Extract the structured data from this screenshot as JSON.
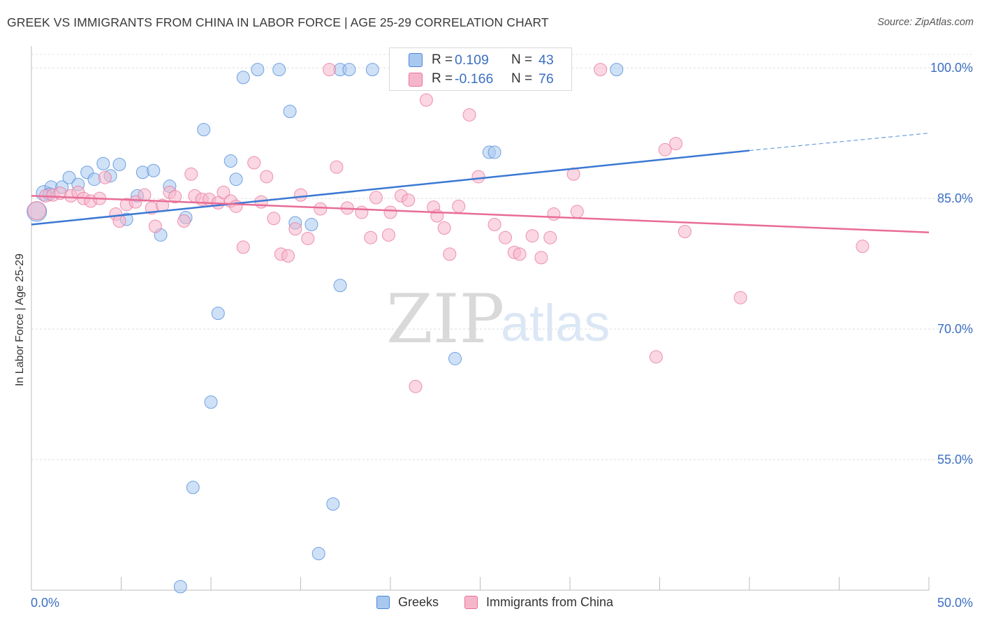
{
  "header": {
    "title": "GREEK VS IMMIGRANTS FROM CHINA IN LABOR FORCE | AGE 25-29 CORRELATION CHART",
    "source": "Source: ZipAtlas.com"
  },
  "stats_legend": {
    "rows": [
      {
        "r_label": "R =",
        "r_value": "0.109",
        "n_label": "N =",
        "n_value": "43",
        "color": "#a8c8f0"
      },
      {
        "r_label": "R =",
        "r_value": "-0.166",
        "n_label": "N =",
        "n_value": "76",
        "color": "#f6b6ca"
      }
    ]
  },
  "watermark": {
    "zip": "ZIP",
    "atlas": "atlas"
  },
  "bottom_legend": {
    "items": [
      {
        "label": "Greeks",
        "color": "#a8c8f0"
      },
      {
        "label": "Immigrants from China",
        "color": "#f6b6ca"
      }
    ]
  },
  "chart_data": {
    "type": "scatter",
    "title": "GREEK VS IMMIGRANTS FROM CHINA IN LABOR FORCE | AGE 25-29 CORRELATION CHART",
    "xlabel": "",
    "ylabel": "In Labor Force | Age 25-29",
    "xlim": [
      0,
      50
    ],
    "ylim": [
      40,
      102.5
    ],
    "x_tick_labels": [
      {
        "value": 0,
        "label": "0.0%"
      },
      {
        "value": 50,
        "label": "50.0%"
      }
    ],
    "y_tick_labels": [
      {
        "value": 100,
        "label": "100.0%"
      },
      {
        "value": 85,
        "label": "85.0%"
      },
      {
        "value": 70,
        "label": "70.0%"
      },
      {
        "value": 55,
        "label": "55.0%"
      }
    ],
    "grid": "horizontal dashed",
    "legend_position": "bottom-center",
    "series": [
      {
        "name": "Greeks",
        "color": "#4a86d8",
        "fill": "#a8c8f0",
        "R": 0.109,
        "N": 43,
        "trend": {
          "x0": 0,
          "y0": 82.0,
          "x1": 40,
          "y1": 90.5,
          "x_dash_end": 50,
          "y_dash_end": 92.5
        },
        "points": [
          [
            0.3,
            83.5,
            14
          ],
          [
            0.7,
            85.6,
            11
          ],
          [
            1.1,
            86.3,
            9
          ],
          [
            1.7,
            86.3,
            9
          ],
          [
            2.1,
            87.4,
            9
          ],
          [
            2.6,
            86.6,
            9
          ],
          [
            3.1,
            88.0,
            9
          ],
          [
            3.5,
            87.2,
            9
          ],
          [
            4.0,
            89.0,
            9
          ],
          [
            4.4,
            87.6,
            9
          ],
          [
            4.9,
            88.9,
            9
          ],
          [
            5.3,
            82.6,
            9
          ],
          [
            5.9,
            85.3,
            9
          ],
          [
            6.2,
            88.0,
            9
          ],
          [
            6.8,
            88.2,
            9
          ],
          [
            7.2,
            80.8,
            9
          ],
          [
            7.7,
            86.4,
            9
          ],
          [
            8.3,
            40.4,
            9
          ],
          [
            8.6,
            82.8,
            9
          ],
          [
            9.0,
            51.8,
            9
          ],
          [
            9.6,
            92.9,
            9
          ],
          [
            10.0,
            61.6,
            9
          ],
          [
            10.4,
            71.8,
            9
          ],
          [
            11.1,
            89.3,
            9
          ],
          [
            11.4,
            87.2,
            9
          ],
          [
            11.8,
            98.9,
            9
          ],
          [
            12.6,
            99.8,
            9
          ],
          [
            13.8,
            99.8,
            9
          ],
          [
            14.4,
            95.0,
            9
          ],
          [
            14.7,
            82.2,
            9
          ],
          [
            15.6,
            82.0,
            9
          ],
          [
            16.0,
            44.2,
            9
          ],
          [
            16.8,
            49.9,
            9
          ],
          [
            17.2,
            75.0,
            9
          ],
          [
            17.2,
            99.8,
            9
          ],
          [
            17.7,
            99.8,
            9
          ],
          [
            19.0,
            99.8,
            9
          ],
          [
            20.3,
            99.8,
            9
          ],
          [
            23.6,
            66.6,
            9
          ],
          [
            25.5,
            90.3,
            9
          ],
          [
            25.8,
            90.3,
            9
          ],
          [
            32.6,
            99.8,
            9
          ],
          [
            1.0,
            85.5,
            9
          ]
        ]
      },
      {
        "name": "Immigrants from China",
        "color": "#e8709a",
        "fill": "#f6b6ca",
        "R": -0.166,
        "N": 76,
        "trend": {
          "x0": 0,
          "y0": 85.3,
          "x1": 50,
          "y1": 81.1
        },
        "points": [
          [
            0.3,
            83.6,
            13
          ],
          [
            0.8,
            85.3,
            9
          ],
          [
            1.2,
            85.4,
            9
          ],
          [
            1.6,
            85.6,
            9
          ],
          [
            2.2,
            85.3,
            9
          ],
          [
            2.6,
            85.7,
            9
          ],
          [
            2.9,
            85.0,
            9
          ],
          [
            3.3,
            84.7,
            9
          ],
          [
            3.8,
            85.0,
            9
          ],
          [
            4.1,
            87.4,
            9
          ],
          [
            4.7,
            83.2,
            9
          ],
          [
            4.9,
            82.4,
            9
          ],
          [
            5.3,
            84.3,
            9
          ],
          [
            5.8,
            84.6,
            9
          ],
          [
            6.3,
            85.4,
            9
          ],
          [
            6.7,
            83.9,
            9
          ],
          [
            6.9,
            81.8,
            9
          ],
          [
            7.3,
            84.2,
            9
          ],
          [
            7.7,
            85.7,
            9
          ],
          [
            8.0,
            85.2,
            9
          ],
          [
            8.5,
            82.4,
            9
          ],
          [
            8.9,
            87.8,
            9
          ],
          [
            9.1,
            85.3,
            9
          ],
          [
            9.5,
            84.9,
            9
          ],
          [
            9.9,
            84.9,
            9
          ],
          [
            10.4,
            84.5,
            9
          ],
          [
            10.7,
            85.7,
            9
          ],
          [
            11.1,
            84.7,
            9
          ],
          [
            11.4,
            84.1,
            9
          ],
          [
            11.8,
            79.4,
            9
          ],
          [
            12.4,
            89.1,
            9
          ],
          [
            12.8,
            84.6,
            9
          ],
          [
            13.1,
            87.5,
            9
          ],
          [
            13.5,
            82.7,
            9
          ],
          [
            13.9,
            78.6,
            9
          ],
          [
            14.3,
            78.4,
            9
          ],
          [
            14.7,
            81.5,
            9
          ],
          [
            15.0,
            85.4,
            9
          ],
          [
            15.4,
            80.4,
            9
          ],
          [
            16.1,
            83.8,
            9
          ],
          [
            16.6,
            99.8,
            9
          ],
          [
            17.0,
            88.6,
            9
          ],
          [
            17.6,
            83.9,
            9
          ],
          [
            18.4,
            83.4,
            9
          ],
          [
            18.9,
            80.5,
            9
          ],
          [
            19.2,
            85.1,
            9
          ],
          [
            19.9,
            80.8,
            9
          ],
          [
            20.0,
            83.4,
            9
          ],
          [
            20.6,
            85.3,
            9
          ],
          [
            21.0,
            84.8,
            9
          ],
          [
            21.4,
            63.4,
            9
          ],
          [
            22.0,
            96.3,
            9
          ],
          [
            22.4,
            84.0,
            9
          ],
          [
            22.6,
            83.0,
            9
          ],
          [
            23.0,
            81.6,
            9
          ],
          [
            23.3,
            78.6,
            9
          ],
          [
            23.8,
            84.1,
            9
          ],
          [
            24.4,
            94.6,
            9
          ],
          [
            24.9,
            87.5,
            9
          ],
          [
            25.8,
            82.0,
            9
          ],
          [
            26.4,
            80.5,
            9
          ],
          [
            26.9,
            78.8,
            9
          ],
          [
            27.2,
            78.6,
            9
          ],
          [
            27.9,
            80.7,
            9
          ],
          [
            28.4,
            78.2,
            9
          ],
          [
            28.9,
            80.5,
            9
          ],
          [
            29.1,
            83.2,
            9
          ],
          [
            30.2,
            87.8,
            9
          ],
          [
            30.4,
            83.5,
            9
          ],
          [
            31.7,
            99.8,
            9
          ],
          [
            34.8,
            66.8,
            9
          ],
          [
            35.3,
            90.6,
            9
          ],
          [
            35.9,
            91.3,
            9
          ],
          [
            36.4,
            81.2,
            9
          ],
          [
            39.5,
            73.6,
            9
          ],
          [
            46.3,
            79.5,
            9
          ]
        ]
      }
    ]
  }
}
